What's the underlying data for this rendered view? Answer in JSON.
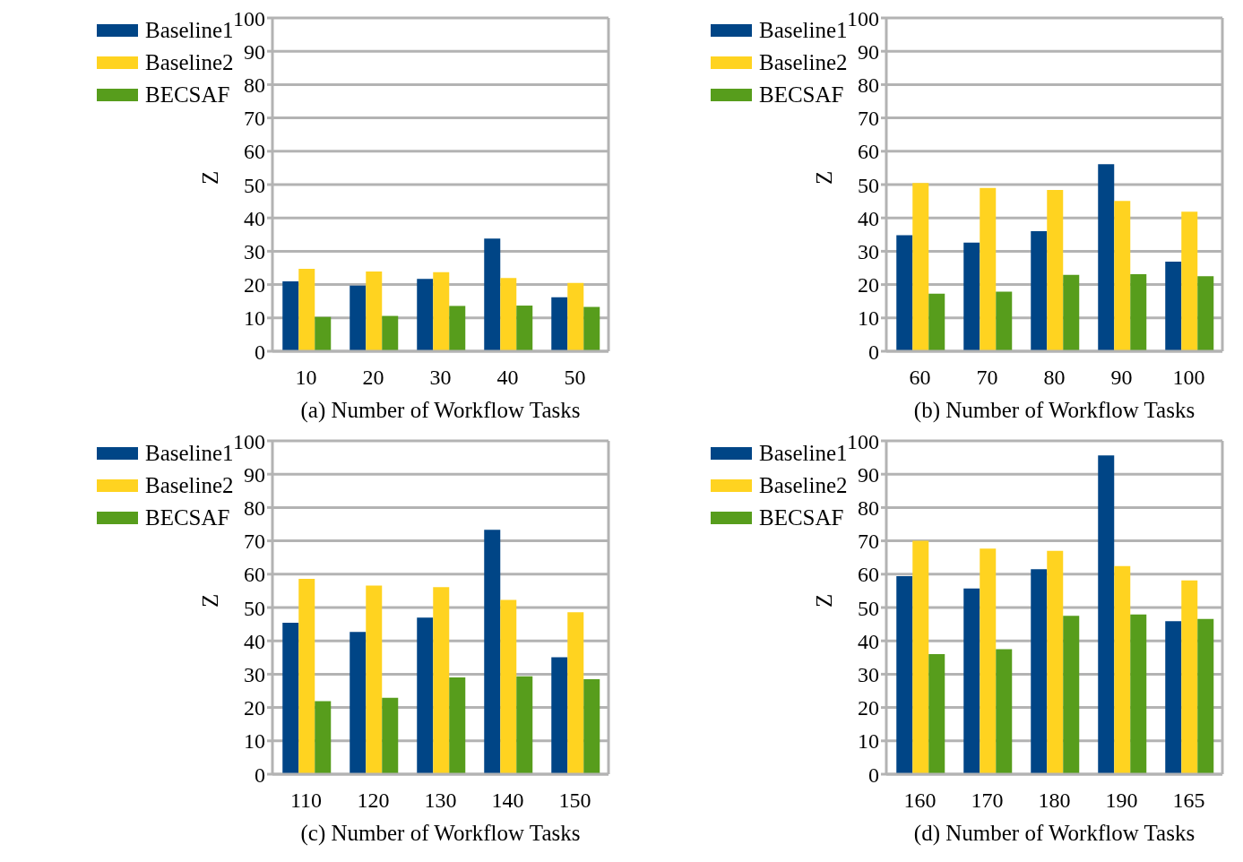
{
  "chart_data": [
    {
      "type": "bar",
      "categories": [
        "10",
        "20",
        "30",
        "40",
        "50"
      ],
      "xlabel": "(a) Number of Workflow Tasks",
      "ylabel": "Z",
      "ylim": [
        0,
        100
      ],
      "yticks": [
        0,
        10,
        20,
        30,
        40,
        50,
        60,
        70,
        80,
        90,
        100
      ],
      "grid": "y",
      "legend": "top left",
      "series": [
        {
          "name": "Baseline1",
          "color": "#004586",
          "values": [
            21,
            19.7,
            21.7,
            33.8,
            16.2
          ]
        },
        {
          "name": "Baseline2",
          "color": "#ffd320",
          "values": [
            24.7,
            23.9,
            23.7,
            22,
            20.5
          ]
        },
        {
          "name": "BECSAF",
          "color": "#579d1c",
          "values": [
            10.3,
            10.6,
            13.6,
            13.7,
            13.3
          ]
        }
      ]
    },
    {
      "type": "bar",
      "categories": [
        "60",
        "70",
        "80",
        "90",
        "100"
      ],
      "xlabel": "(b) Number of Workflow Tasks",
      "ylabel": "Z",
      "ylim": [
        0,
        100
      ],
      "yticks": [
        0,
        10,
        20,
        30,
        40,
        50,
        60,
        70,
        80,
        90,
        100
      ],
      "grid": "y",
      "legend": "top left",
      "series": [
        {
          "name": "Baseline1",
          "color": "#004586",
          "values": [
            34.8,
            32.6,
            36,
            56.1,
            26.9
          ]
        },
        {
          "name": "Baseline2",
          "color": "#ffd320",
          "values": [
            50.5,
            49,
            48.4,
            45.1,
            41.9
          ]
        },
        {
          "name": "BECSAF",
          "color": "#579d1c",
          "values": [
            17.3,
            17.9,
            22.9,
            23.1,
            22.5
          ]
        }
      ]
    },
    {
      "type": "bar",
      "categories": [
        "110",
        "120",
        "130",
        "140",
        "150"
      ],
      "xlabel": "(c) Number of Workflow Tasks",
      "ylabel": "Z",
      "ylim": [
        0,
        100
      ],
      "yticks": [
        0,
        10,
        20,
        30,
        40,
        50,
        60,
        70,
        80,
        90,
        100
      ],
      "grid": "y",
      "legend": "top left",
      "series": [
        {
          "name": "Baseline1",
          "color": "#004586",
          "values": [
            45.4,
            42.7,
            47,
            73.3,
            35.1
          ]
        },
        {
          "name": "Baseline2",
          "color": "#ffd320",
          "values": [
            58.6,
            56.6,
            56.1,
            52.3,
            48.6
          ]
        },
        {
          "name": "BECSAF",
          "color": "#579d1c",
          "values": [
            21.9,
            22.9,
            29,
            29.4,
            28.5
          ]
        }
      ]
    },
    {
      "type": "bar",
      "categories": [
        "160",
        "170",
        "180",
        "190",
        "165"
      ],
      "xlabel": "(d) Number of Workflow Tasks",
      "ylabel": "Z",
      "ylim": [
        0,
        100
      ],
      "yticks": [
        0,
        10,
        20,
        30,
        40,
        50,
        60,
        70,
        80,
        90,
        100
      ],
      "grid": "y",
      "legend": "top left",
      "series": [
        {
          "name": "Baseline1",
          "color": "#004586",
          "values": [
            59.4,
            55.7,
            61.5,
            95.6,
            45.9
          ]
        },
        {
          "name": "Baseline2",
          "color": "#ffd320",
          "values": [
            70,
            67.7,
            67,
            62.4,
            58.1
          ]
        },
        {
          "name": "BECSAF",
          "color": "#579d1c",
          "values": [
            36,
            37.5,
            47.5,
            47.9,
            46.6
          ]
        }
      ]
    }
  ]
}
